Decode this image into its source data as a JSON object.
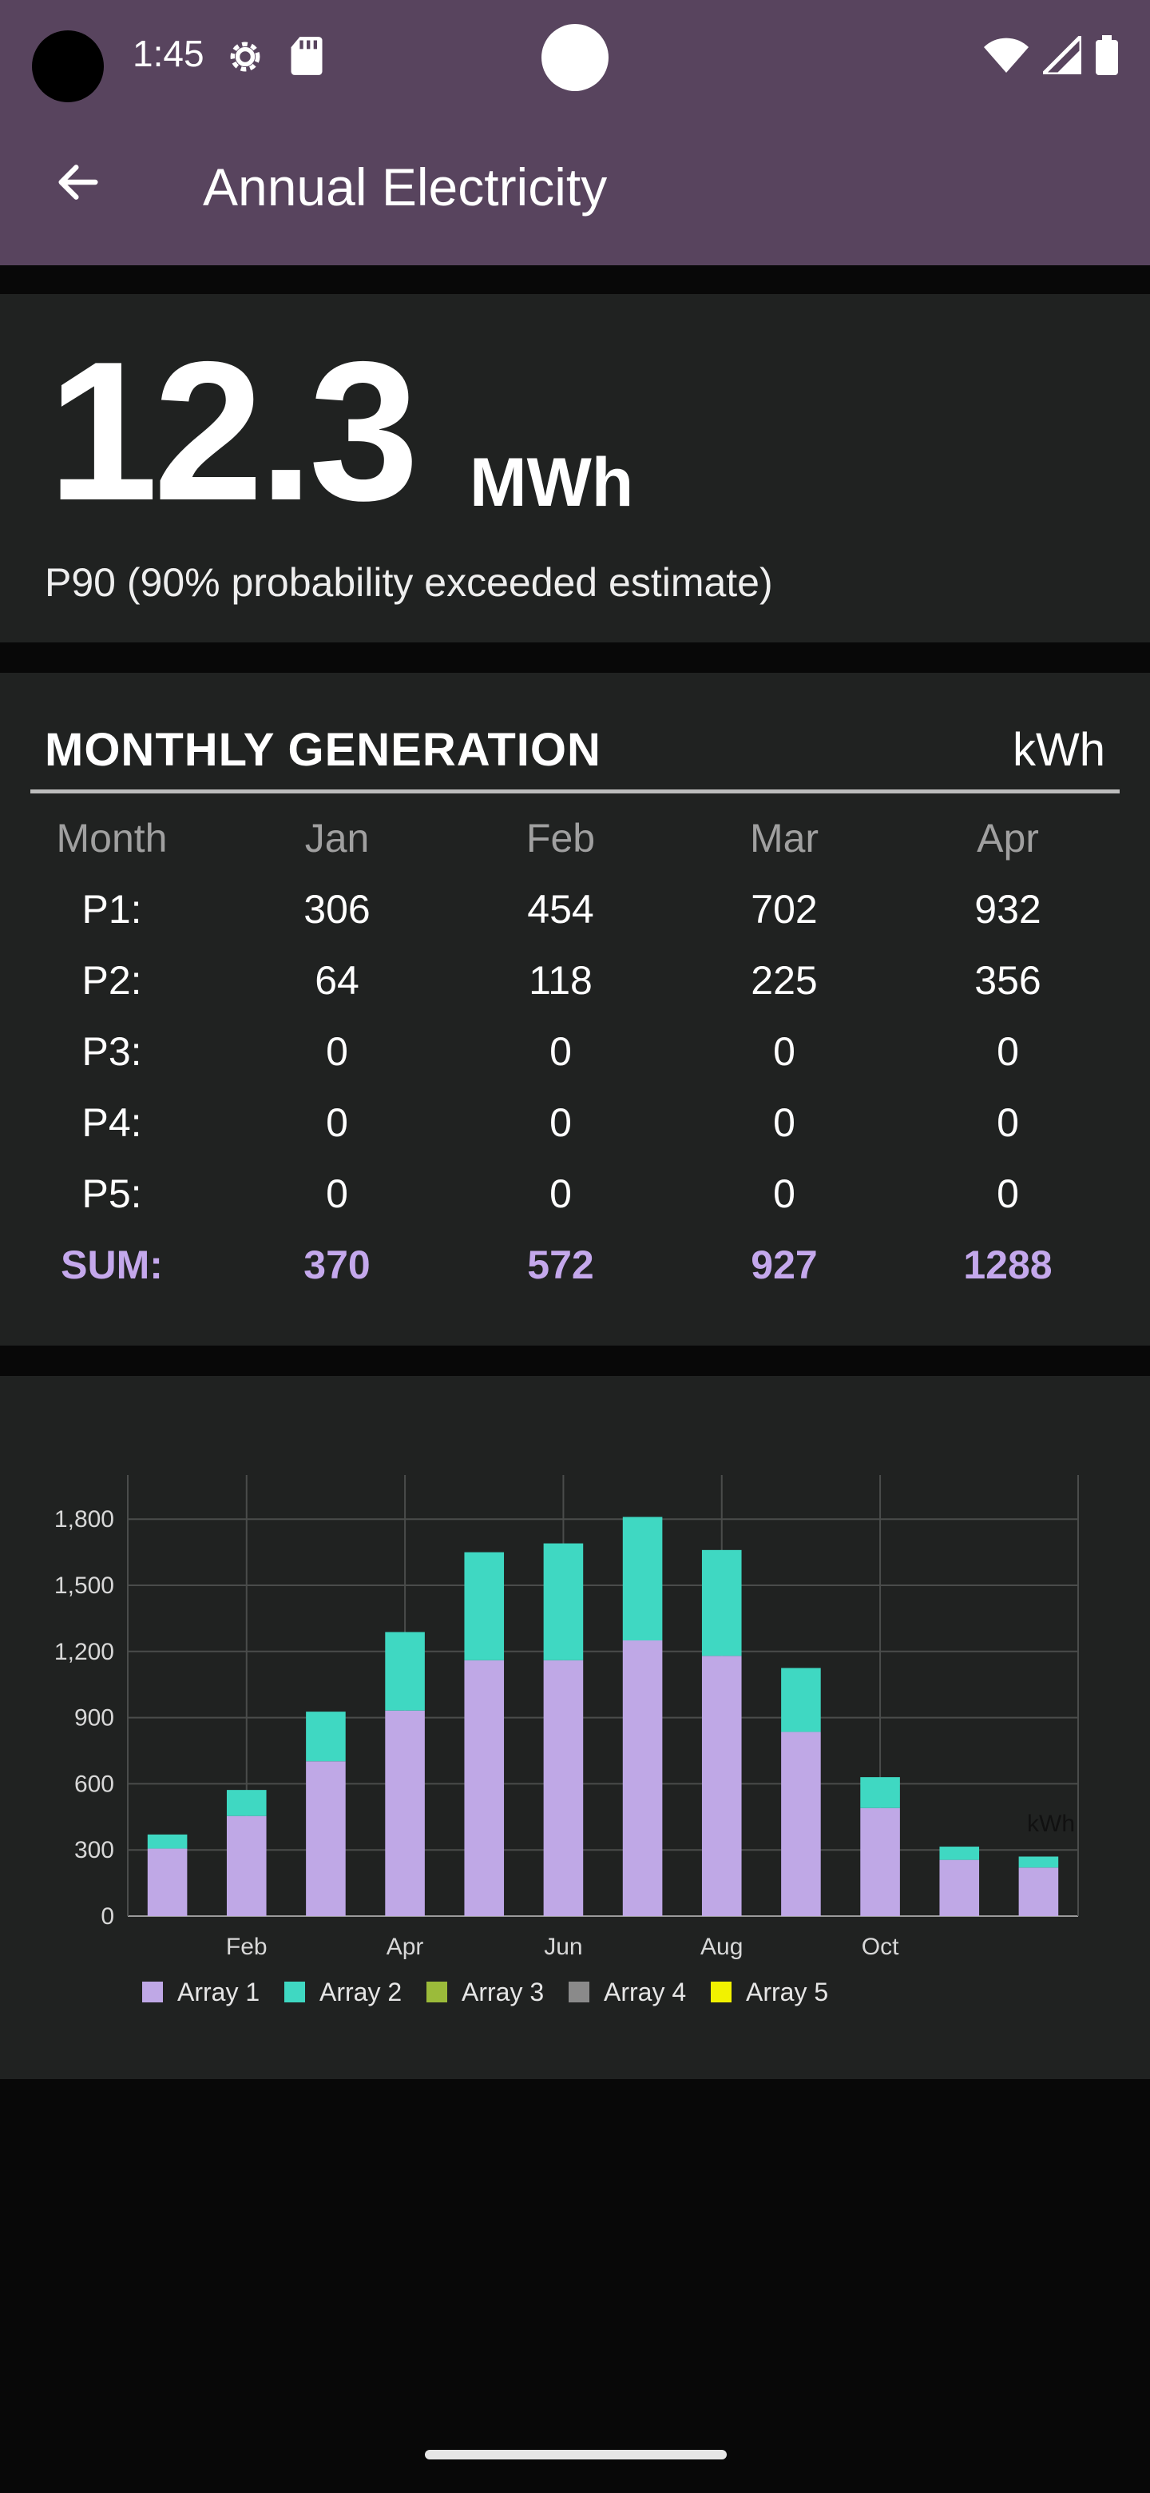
{
  "status_bar": {
    "time": "1:45",
    "icons_left": [
      "settings-gear-icon",
      "sd-card-icon"
    ],
    "icons_right": [
      "wifi-icon",
      "cellular-signal-icon",
      "battery-icon"
    ]
  },
  "app_bar": {
    "back_icon": "arrow-back-icon",
    "title": "Annual Electricity",
    "background": "#58445e"
  },
  "summary": {
    "value": "12.3",
    "unit": "MWh",
    "caption": "P90 (90% probability exceeded estimate)"
  },
  "monthly": {
    "title": "MONTHLY GENERATION",
    "unit": "kWh",
    "header": [
      "Month",
      "Jan",
      "Feb",
      "Mar",
      "Apr"
    ],
    "rows": [
      {
        "label": "P1:",
        "values": [
          "306",
          "454",
          "702",
          "932"
        ]
      },
      {
        "label": "P2:",
        "values": [
          "64",
          "118",
          "225",
          "356"
        ]
      },
      {
        "label": "P3:",
        "values": [
          "0",
          "0",
          "0",
          "0"
        ]
      },
      {
        "label": "P4:",
        "values": [
          "0",
          "0",
          "0",
          "0"
        ]
      },
      {
        "label": "P5:",
        "values": [
          "0",
          "0",
          "0",
          "0"
        ]
      }
    ],
    "sum": {
      "label": "SUM:",
      "values": [
        "370",
        "572",
        "927",
        "1288"
      ]
    },
    "sum_color": "#c4a8ec"
  },
  "chart_data": {
    "type": "bar",
    "stacked": true,
    "categories": [
      "Jan",
      "Feb",
      "Mar",
      "Apr",
      "May",
      "Jun",
      "Jul",
      "Aug",
      "Sep",
      "Oct",
      "Nov",
      "Dec"
    ],
    "x_tick_labels": [
      "Feb",
      "Apr",
      "Jun",
      "Aug",
      "Oct"
    ],
    "series": [
      {
        "name": "Array 1",
        "color": "#bfa8e6",
        "values": [
          306,
          454,
          702,
          932,
          1160,
          1160,
          1250,
          1180,
          835,
          490,
          255,
          220
        ]
      },
      {
        "name": "Array 2",
        "color": "#3fd8c2",
        "values": [
          64,
          118,
          225,
          356,
          490,
          530,
          560,
          480,
          290,
          140,
          60,
          50
        ]
      },
      {
        "name": "Array 3",
        "color": "#9bbb3a",
        "values": [
          0,
          0,
          0,
          0,
          0,
          0,
          0,
          0,
          0,
          0,
          0,
          0
        ]
      },
      {
        "name": "Array 4",
        "color": "#8a8a8a",
        "values": [
          0,
          0,
          0,
          0,
          0,
          0,
          0,
          0,
          0,
          0,
          0,
          0
        ]
      },
      {
        "name": "Array 5",
        "color": "#f2f200",
        "values": [
          0,
          0,
          0,
          0,
          0,
          0,
          0,
          0,
          0,
          0,
          0,
          0
        ]
      }
    ],
    "y_ticks": [
      "0",
      "300",
      "600",
      "900",
      "1,200",
      "1,500",
      "1,800"
    ],
    "ylim": [
      0,
      2000
    ],
    "unit_label": "kWh",
    "grid": true,
    "legend_position": "bottom-left"
  }
}
